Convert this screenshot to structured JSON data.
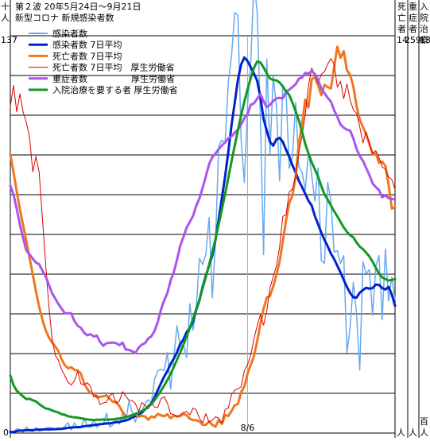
{
  "chart_data": {
    "type": "line",
    "title": "第２波 20年5月24日〜9月21日",
    "subtitle": "新型コロナ 新規感染者数",
    "left_axis_unit": [
      "十",
      "人"
    ],
    "right_axis_headers": [
      [
        "死",
        "亡",
        "者"
      ],
      [
        "重",
        "症",
        "者"
      ],
      [
        "入",
        "院",
        "治",
        "療"
      ]
    ],
    "right_axis_units": [
      "人",
      "人",
      "百人"
    ],
    "y_max_label_left": "137",
    "y_min_label_left": "0",
    "y_max_labels_right": [
      "14",
      "259",
      "137"
    ],
    "x_tick_label": "8/6",
    "x_tick_index": 74,
    "n_days": 121,
    "grid": true,
    "gridline_count": 11,
    "legend_position": "top-left",
    "colors": {
      "cases": "#66aaee",
      "cases_ma": "#0022cc",
      "deaths_ma": "#ee7722",
      "deaths_mhlw": "#dd0000",
      "severe": "#aa55ee",
      "hospital": "#119922",
      "grid": "#000000",
      "vline": "#aaaaaa"
    },
    "legend": [
      {
        "key": "cases",
        "label": "感染者数",
        "width": 2
      },
      {
        "key": "cases_ma",
        "label": "感染者数 7日平均",
        "width": 3
      },
      {
        "key": "deaths_ma",
        "label": "死亡者数 7日平均",
        "width": 3
      },
      {
        "key": "deaths_mhlw",
        "label": "死亡者数 7日平均　厚生労働省",
        "width": 1
      },
      {
        "key": "severe",
        "label": "重症者数　　　　　厚生労働省",
        "width": 3
      },
      {
        "key": "hospital",
        "label": "入院治療を要する者 厚生労働省",
        "width": 3
      }
    ],
    "series": [
      {
        "key": "cases",
        "width": 1.5,
        "values": [
          0.5,
          0.2,
          1.5,
          1.2,
          0.3,
          2.1,
          0.8,
          0.5,
          1.9,
          0.6,
          1,
          1.6,
          2,
          1.8,
          1.2,
          1.8,
          1.4,
          2.3,
          3.6,
          1,
          3.5,
          1.7,
          1.8,
          4.9,
          2.6,
          1.9,
          4.6,
          2,
          3.1,
          3,
          6.9,
          2.1,
          2.9,
          5.1,
          3.1,
          7.1,
          4.1,
          11,
          7.2,
          3.8,
          7.7,
          7.5,
          10,
          11.5,
          10.3,
          18.6,
          21.5,
          22,
          21.5,
          27.8,
          15.2,
          26.2,
          37,
          30,
          30.6,
          26,
          44.6,
          35.5,
          43.4,
          60.2,
          58.2,
          61.6,
          74.3,
          46.6,
          65.9,
          99,
          101,
          100,
          121,
          130,
          145,
          144,
          101,
          86.4,
          113,
          128,
          156,
          145,
          109,
          61.5,
          129,
          96.3,
          123,
          112.8,
          87,
          120,
          118,
          91.3,
          95.2,
          114,
          91.8,
          90,
          83.8,
          97,
          89,
          80,
          91.4,
          59.5,
          58.5,
          86.4,
          80,
          62.4,
          62.9,
          58.5,
          61.2,
          27.7,
          36.6,
          52,
          41,
          21.7,
          59.1,
          55,
          56.4,
          40.6,
          57.5,
          61.2,
          39.1,
          63.5,
          45.6,
          53.7,
          46
        ]
      },
      {
        "key": "cases_ma",
        "width": 3,
        "values": [
          0.4,
          0.35,
          0.7,
          0.85,
          0.9,
          1,
          1,
          1,
          1.15,
          1.2,
          1.2,
          1.3,
          1.25,
          1.3,
          1.35,
          1.4,
          1.45,
          1.6,
          1.8,
          1.9,
          2,
          2.05,
          2.1,
          2.35,
          2.45,
          2.6,
          2.75,
          2.9,
          3.05,
          3.15,
          3.35,
          3.3,
          3.55,
          3.75,
          3.8,
          4.15,
          4.35,
          4.7,
          5.4,
          5.8,
          6.4,
          7.05,
          8.15,
          9.2,
          10.2,
          12.3,
          14.8,
          17.2,
          19.5,
          21.4,
          23.8,
          25.7,
          27.9,
          30.7,
          32.3,
          34.8,
          36.2,
          38.4,
          42.5,
          45.8,
          50.5,
          54.3,
          57.8,
          61.2,
          66.6,
          73.7,
          81.1,
          88.5,
          97,
          106.2,
          113.9,
          121.9,
          127.1,
          129.5,
          128.3,
          126.1,
          124,
          121.5,
          115.8,
          108.3,
          104.2,
          100.4,
          99.1,
          101.3,
          101.8,
          100.4,
          97.7,
          95.3,
          92.3,
          89.9,
          87,
          84.8,
          82.5,
          80.1,
          78.5,
          74.8,
          72,
          69.1,
          66.6,
          64.4,
          61.9,
          60,
          57.7,
          55.4,
          52.8,
          50.4,
          48.3,
          46.8,
          46.7,
          48.4,
          49.3,
          50.1,
          49.8,
          50,
          51.2,
          51.1,
          50,
          49.5,
          50.4,
          47.8,
          43.9
        ]
      },
      {
        "key": "deaths_ma",
        "width": 3,
        "values": [
          96.1,
          89.9,
          83.3,
          77.1,
          71.6,
          66.2,
          60.4,
          54.7,
          48.8,
          43.5,
          39.1,
          35.5,
          33,
          31.3,
          29.9,
          28.2,
          25.4,
          23.4,
          22.3,
          22.7,
          21.8,
          21.6,
          20.6,
          17.2,
          15.2,
          13.8,
          13.6,
          12.3,
          12.5,
          12.7,
          13,
          11.8,
          10.8,
          10.7,
          9.3,
          7.3,
          5.7,
          5.7,
          6,
          6.7,
          5.6,
          6,
          5.7,
          4.6,
          5.7,
          5.4,
          6.6,
          6.1,
          5.8,
          6.5,
          5.1,
          6,
          5.7,
          5.8,
          6.6,
          6.2,
          4.9,
          4.5,
          4.4,
          4,
          2.8,
          2.8,
          4,
          2.8,
          2.2,
          4.5,
          3.1,
          6.2,
          5.9,
          7.6,
          9.6,
          10,
          14.1,
          16,
          20.5,
          23.6,
          26.5,
          31.7,
          37.5,
          42.9,
          46.7,
          47.3,
          50.5,
          54.6,
          59.1,
          66.2,
          73.3,
          79.3,
          82,
          88.3,
          100,
          106.4,
          115,
          112.3,
          122,
          122.7,
          120,
          116.5,
          120.1,
          119.3,
          118.8,
          126.3,
          133.2,
          129.4,
          131.7,
          125.1,
          123.5,
          119.5,
          112.7,
          108.1,
          105.5,
          103,
          99.8,
          96.2,
          96.5,
          93.2,
          93.6,
          92.1,
          85.6,
          77.4,
          78
        ]
      },
      {
        "key": "deaths_mhlw",
        "width": 1,
        "values": [
          112.7,
          119.9,
          110.8,
          116.9,
          110.7,
          107,
          102,
          90.1,
          95.4,
          89.8,
          74.2,
          58.5,
          44,
          32.8,
          26.9,
          25.1,
          21.9,
          19.8,
          17.5,
          16.6,
          18,
          21.3,
          17,
          16.7,
          17.4,
          16.1,
          12.4,
          13.1,
          9.8,
          10.4,
          10.6,
          13,
          13.6,
          10.3,
          11,
          14.3,
          12.8,
          11.3,
          11.2,
          10.2,
          7.4,
          10.5,
          9.6,
          8.3,
          10.6,
          8.9,
          8.8,
          11.9,
          12.5,
          10.3,
          6.6,
          6.4,
          5.7,
          6.3,
          7.1,
          7.4,
          6.3,
          8.6,
          8,
          5,
          3.5,
          6.7,
          3.7,
          4.4,
          5.6,
          5.1,
          3.4,
          8.2,
          8.6,
          13.3,
          14.7,
          15.3,
          15.9,
          21.5,
          23.6,
          26.9,
          32.5,
          37,
          40.8,
          37.2,
          42.2,
          50.1,
          53.9,
          57.5,
          64.2,
          74.7,
          75.3,
          83.2,
          84.1,
          88.7,
          96.9,
          102.5,
          109.8,
          119.7,
          125.9,
          123.4,
          120.6,
          123.7,
          124.6,
          127.3,
          129.1,
          127.3,
          119.3,
          121.3,
          115.3,
          120.4,
          114.9,
          111.4,
          110.3,
          105.5,
          100,
          103.8,
          99.7,
          96.4,
          97.4,
          95.1,
          91.7,
          91.1,
          88.3,
          87.4,
          84
        ]
      },
      {
        "key": "severe",
        "width": 3,
        "values": [
          85.3,
          82.2,
          77.3,
          71.8,
          67.2,
          62.9,
          61.6,
          60.1,
          58.8,
          58.2,
          56,
          54.1,
          51.2,
          48.3,
          46.4,
          44.5,
          42.9,
          41.3,
          41.3,
          41.3,
          38.6,
          37,
          36.3,
          34.6,
          33.7,
          34.1,
          33.3,
          33.6,
          31.4,
          30.1,
          31,
          31.1,
          31.2,
          31,
          30.3,
          31.2,
          28.8,
          28.7,
          28.2,
          27.6,
          29.4,
          30.5,
          31,
          32.6,
          33.4,
          35.2,
          38.3,
          42.6,
          45.8,
          48.3,
          52.6,
          55.5,
          59.8,
          64.6,
          67.6,
          70.9,
          72.8,
          74.9,
          78.4,
          80.9,
          84.6,
          88.6,
          92.7,
          95.1,
          96.4,
          97.9,
          99.2,
          100.2,
          101.7,
          102.3,
          103.6,
          104.6,
          106.4,
          108.6,
          110.1,
          113.2,
          113.7,
          115.3,
          116.9,
          114.4,
          112.4,
          113.2,
          114.5,
          115.4,
          115.6,
          115.4,
          117.7,
          118.4,
          119.3,
          120.3,
          122.2,
          122.6,
          124.2,
          123.9,
          124.9,
          123.8,
          121.8,
          118.8,
          117.2,
          115.6,
          114.3,
          111.3,
          109.1,
          106.4,
          105.3,
          104.6,
          104.3,
          101.5,
          98,
          95.5,
          93.9,
          91.4,
          89,
          86.1,
          84.8,
          83.8,
          81.3,
          82,
          81,
          80.7,
          80.6
        ]
      },
      {
        "key": "hospital",
        "width": 3,
        "values": [
          19.8,
          16.5,
          14.6,
          13.6,
          12.6,
          11.7,
          11.8,
          11.3,
          10.9,
          10,
          9.2,
          8.5,
          8.3,
          7.8,
          7.4,
          7.1,
          6.5,
          6.3,
          5.8,
          5.6,
          5.4,
          5.3,
          5.1,
          4.9,
          4.7,
          4.6,
          4.5,
          4.6,
          4.6,
          4.7,
          4.6,
          4.7,
          4.7,
          4.9,
          5,
          5.2,
          5.5,
          5.8,
          6.2,
          6.6,
          7,
          7.6,
          8.2,
          9,
          10,
          11.4,
          13,
          14.6,
          16.4,
          18.3,
          20.4,
          22.8,
          25.3,
          27.8,
          30.5,
          33.3,
          36.3,
          39.4,
          42.7,
          46.1,
          50,
          53.9,
          58,
          62.4,
          66.9,
          72,
          77.1,
          82.5,
          88,
          93.7,
          99.1,
          104.5,
          109.6,
          114.3,
          118.6,
          122.4,
          125.9,
          128.1,
          127.8,
          126.1,
          124,
          122.2,
          121.8,
          121.6,
          120.9,
          119.5,
          117.9,
          116.6,
          113.9,
          111,
          107.8,
          103.9,
          99.7,
          96.4,
          93.4,
          90.9,
          88.4,
          85.2,
          82.3,
          80.5,
          78.5,
          76.5,
          74.7,
          72.8,
          70.9,
          69.4,
          68.2,
          67.5,
          65.7,
          64.3,
          63.4,
          62.2,
          60.9,
          59.1,
          57,
          55,
          53.7,
          53.1,
          52.6,
          52.8,
          53.1
        ]
      }
    ]
  }
}
